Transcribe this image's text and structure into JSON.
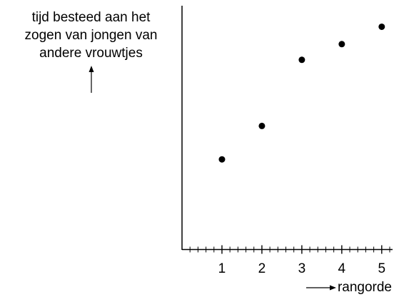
{
  "chart_data": {
    "type": "scatter",
    "title": "",
    "ylabel_lines": [
      "tijd besteed aan het",
      "zogen van jongen van",
      "andere vrouwtjes"
    ],
    "xlabel": "rangorde",
    "x": [
      1,
      2,
      3,
      4,
      5
    ],
    "y": [
      1.0,
      2.0,
      3.98,
      4.45,
      4.97
    ],
    "x_ticks": [
      1,
      2,
      3,
      4,
      5
    ],
    "x_tick_labels": [
      "1",
      "2",
      "3",
      "4",
      "5"
    ],
    "xlim": [
      0,
      5.2
    ],
    "ylim": [
      -1.7,
      5.6
    ],
    "minor_ticks_per_unit": 5,
    "y_tick_labels": [],
    "grid": false,
    "legend": "none",
    "point_color": "#000000",
    "axis_color": "#000000"
  }
}
